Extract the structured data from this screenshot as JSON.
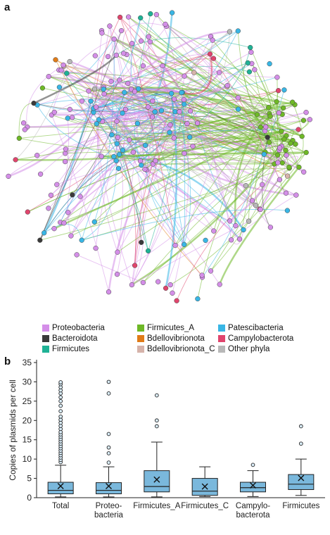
{
  "panels": {
    "a_label": "a",
    "b_label": "b"
  },
  "legend": [
    {
      "name": "Proteobacteria",
      "color": "#d48ee8"
    },
    {
      "name": "Bacteroidota",
      "color": "#3a3a3a"
    },
    {
      "name": "Firmicutes",
      "color": "#1fb295"
    },
    {
      "name": "Firmicutes_A",
      "color": "#6eb826"
    },
    {
      "name": "Bdellovibrionota",
      "color": "#e07b17"
    },
    {
      "name": "Bdellovibrionota_C",
      "color": "#d6b3aa"
    },
    {
      "name": "Patescibacteria",
      "color": "#38b6e5"
    },
    {
      "name": "Campylobacterota",
      "color": "#e0456d"
    },
    {
      "name": "Other phyla",
      "color": "#b8b8b8"
    }
  ],
  "chart_data": {
    "type": "box",
    "ylabel": "Copies of plasmids per cell",
    "ylim": [
      0,
      35
    ],
    "yticks": [
      0,
      5,
      10,
      15,
      20,
      25,
      30,
      35
    ],
    "categories": [
      "Total",
      "Proteo-\nbacteria",
      "Firmicutes_A",
      "Firmicutes_C",
      "Campylo-\nbacterota",
      "Firmicutes"
    ],
    "boxes": [
      {
        "whisker_low": 0.2,
        "q1": 1.0,
        "median": 1.9,
        "q3": 4.0,
        "whisker_high": 8.4,
        "mean": 3.0,
        "outliers": [
          9.2,
          9.8,
          10.4,
          11.0,
          11.6,
          12.2,
          12.8,
          13.4,
          14.0,
          14.6,
          15.2,
          15.8,
          16.4,
          17.0,
          17.8,
          18.6,
          19.4,
          20.2,
          21.0,
          22.4,
          23.8,
          25.0,
          26.0,
          27.0,
          27.8,
          28.6,
          29.4,
          29.9
        ]
      },
      {
        "whisker_low": 0.2,
        "q1": 1.0,
        "median": 1.9,
        "q3": 3.9,
        "whisker_high": 8.0,
        "mean": 3.0,
        "outliers": [
          9.1,
          11.5,
          13.0,
          16.5,
          27.0,
          30.0
        ]
      },
      {
        "whisker_low": 0.2,
        "q1": 1.5,
        "median": 2.9,
        "q3": 7.0,
        "whisker_high": 14.4,
        "mean": 4.7,
        "outliers": [
          18.5,
          20.0,
          26.5
        ]
      },
      {
        "whisker_low": 0.3,
        "q1": 0.6,
        "median": 1.7,
        "q3": 5.0,
        "whisker_high": 8.0,
        "mean": 2.9,
        "outliers": []
      },
      {
        "whisker_low": 0.3,
        "q1": 1.5,
        "median": 2.6,
        "q3": 4.0,
        "whisker_high": 7.0,
        "mean": 3.2,
        "outliers": [
          8.5
        ]
      },
      {
        "whisker_low": 0.6,
        "q1": 2.1,
        "median": 3.5,
        "q3": 6.0,
        "whisker_high": 10.0,
        "mean": 5.1,
        "outliers": [
          14.0,
          18.5
        ]
      }
    ],
    "box_color": "#7ab8dc",
    "grid": false
  }
}
